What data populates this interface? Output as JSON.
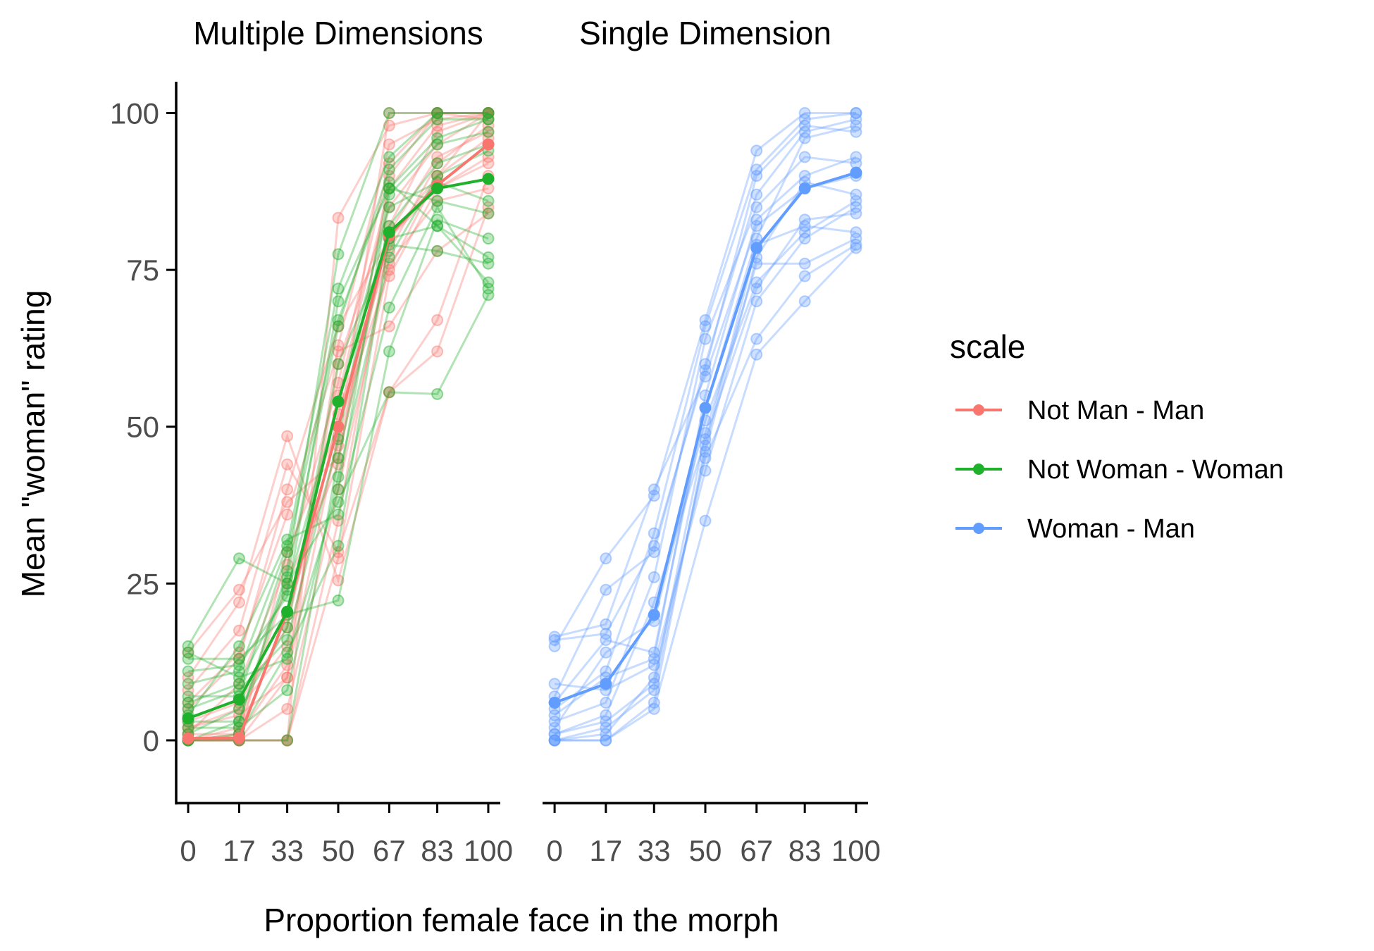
{
  "chart_data": {
    "type": "line",
    "facets": [
      "Multiple Dimensions",
      "Single Dimension"
    ],
    "xlabel": "Proportion female face in the morph",
    "ylabel": "Mean \"woman\" rating",
    "x": [
      0,
      17,
      33,
      50,
      67,
      83,
      100
    ],
    "xlim": [
      -4,
      104
    ],
    "ylim": [
      -10,
      105
    ],
    "yticks": [
      0,
      25,
      50,
      75,
      100
    ],
    "legend": {
      "title": "scale",
      "position": "right",
      "items": [
        {
          "name": "Not Man - Man",
          "color": "#F8766D"
        },
        {
          "name": "Not Woman - Woman",
          "color": "#1FB02C"
        },
        {
          "name": "Woman - Man",
          "color": "#619CFF"
        }
      ]
    },
    "series": [
      {
        "name": "Not Man - Man",
        "facet": "Multiple Dimensions",
        "color": "#F8766D",
        "mean": [
          0.3,
          0.4,
          20.5,
          50,
          80.5,
          88.5,
          95
        ],
        "individual": [
          [
            0,
            0,
            0,
            35,
            80,
            90,
            100
          ],
          [
            0,
            0,
            10,
            48.5,
            100,
            100,
            100
          ],
          [
            1,
            1,
            12,
            60,
            85,
            95,
            100
          ],
          [
            2,
            5,
            15,
            52,
            78,
            92,
            98
          ],
          [
            0,
            2,
            25,
            44,
            90,
            100,
            100
          ],
          [
            3,
            6,
            18,
            55,
            88,
            98,
            100
          ],
          [
            0,
            0,
            30,
            50,
            75,
            90,
            96
          ],
          [
            5,
            13,
            40,
            66,
            80,
            88,
            92
          ],
          [
            0,
            0,
            0,
            83.3,
            98,
            100,
            100
          ],
          [
            8,
            17.5,
            44,
            30,
            55.5,
            67,
            90
          ],
          [
            10,
            22,
            48.5,
            25.5,
            55.5,
            62,
            85
          ],
          [
            14,
            24,
            38,
            45,
            81,
            93,
            97
          ],
          [
            0,
            0,
            5,
            40,
            76,
            86,
            88
          ],
          [
            1,
            9,
            28,
            57,
            92,
            100,
            99
          ],
          [
            6,
            14,
            36,
            62,
            66,
            78,
            84
          ],
          [
            0,
            1,
            20,
            47,
            82,
            97,
            100
          ],
          [
            0,
            0,
            0,
            29,
            74,
            88,
            93
          ],
          [
            2,
            4,
            10,
            63,
            95,
            99,
            100
          ]
        ]
      },
      {
        "name": "Not Woman - Woman",
        "facet": "Multiple Dimensions",
        "color": "#1FB02C",
        "mean": [
          3.5,
          6.5,
          20.5,
          54,
          81,
          88,
          89.5
        ],
        "individual": [
          [
            15,
            29,
            25,
            38,
            55.5,
            55.2,
            71
          ],
          [
            9,
            11,
            31,
            72,
            93,
            100,
            100
          ],
          [
            5,
            8,
            16,
            48,
            88,
            96,
            99
          ],
          [
            0,
            3,
            27,
            77.5,
            100,
            100,
            100
          ],
          [
            13,
            13,
            20,
            22.3,
            62,
            83,
            80
          ],
          [
            7,
            7,
            30,
            67,
            89,
            82,
            77
          ],
          [
            11,
            12,
            23,
            70,
            88,
            86,
            84
          ],
          [
            2,
            2,
            8,
            42,
            77,
            90,
            94
          ],
          [
            0,
            0,
            0,
            45,
            82,
            92,
            95
          ],
          [
            4,
            15,
            32,
            36,
            69,
            85,
            72
          ],
          [
            1,
            5,
            18,
            60,
            79,
            78,
            76
          ],
          [
            14,
            10,
            13,
            40,
            87,
            95,
            97
          ],
          [
            3,
            3,
            26,
            66,
            91,
            99,
            99
          ],
          [
            6,
            9,
            24,
            54,
            85,
            89,
            86
          ],
          [
            0,
            1,
            14,
            31,
            80,
            82,
            73
          ]
        ]
      },
      {
        "name": "Woman - Man",
        "facet": "Single Dimension",
        "color": "#619CFF",
        "mean": [
          6,
          9,
          20,
          53,
          78.5,
          88,
          90.5
        ],
        "individual": [
          [
            16.5,
            18.5,
            40,
            58,
            82,
            88,
            90
          ],
          [
            15,
            29,
            39,
            67,
            94,
            100,
            100
          ],
          [
            0,
            0,
            5,
            35,
            61.5,
            70,
            78.5
          ],
          [
            9,
            8,
            12,
            43,
            70,
            80,
            85
          ],
          [
            7,
            24,
            30,
            60,
            87,
            97,
            99
          ],
          [
            1,
            4,
            22,
            48,
            72,
            83,
            84
          ],
          [
            0,
            1,
            10,
            45,
            64,
            74,
            79
          ],
          [
            5,
            11,
            33,
            66,
            91,
            99,
            100
          ],
          [
            3,
            6,
            26,
            64,
            85,
            93,
            92
          ],
          [
            0,
            2,
            8,
            46,
            77,
            89,
            87
          ],
          [
            2,
            14,
            19,
            51,
            73,
            81,
            86
          ],
          [
            16,
            17,
            31,
            59,
            90,
            98,
            97
          ],
          [
            0,
            0,
            6,
            47,
            79,
            82,
            81
          ],
          [
            4,
            10,
            13,
            55,
            83,
            90,
            93
          ],
          [
            1,
            3,
            9,
            49,
            76,
            76,
            80
          ],
          [
            6,
            16,
            14,
            53,
            80,
            96,
            98
          ]
        ]
      }
    ]
  }
}
